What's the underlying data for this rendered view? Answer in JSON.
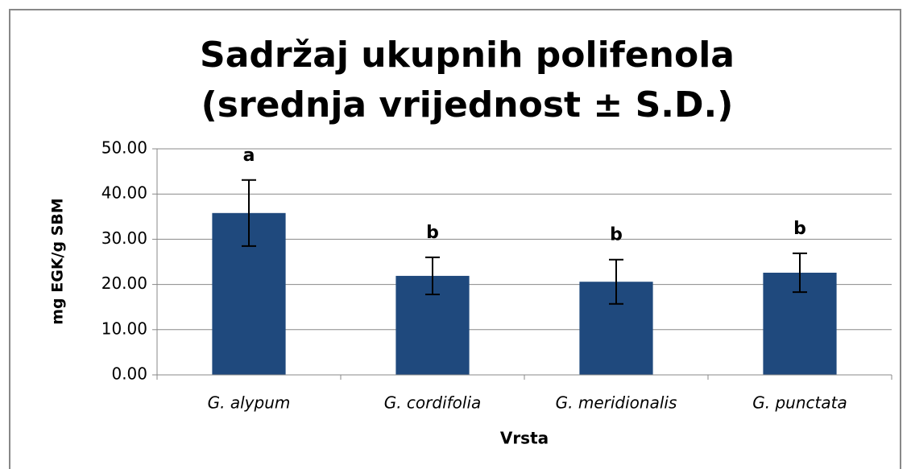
{
  "chart_data": {
    "type": "bar",
    "title": "Sadržaj ukupnih polifenola (srednja vrijednost ± S.D.)",
    "x_label": "Vrsta",
    "y_label": "mg EGK/g SBM",
    "categories": [
      "G. alypum",
      "G. cordifolia",
      "G. meridionalis",
      "G. punctata"
    ],
    "values": [
      35.8,
      21.9,
      20.6,
      22.6
    ],
    "errors": [
      7.3,
      4.1,
      4.9,
      4.3
    ],
    "annotations": [
      "a",
      "b",
      "b",
      "b"
    ],
    "color": "#1f497d",
    "ylim": [
      0,
      50
    ],
    "yticks": [
      {
        "value": 0,
        "label": "0.00"
      },
      {
        "value": 10,
        "label": "10.00"
      },
      {
        "value": 20,
        "label": "20.00"
      },
      {
        "value": 30,
        "label": "30.00"
      },
      {
        "value": 40,
        "label": "40.00"
      },
      {
        "value": 50,
        "label": "50.00"
      }
    ],
    "grid": true
  }
}
